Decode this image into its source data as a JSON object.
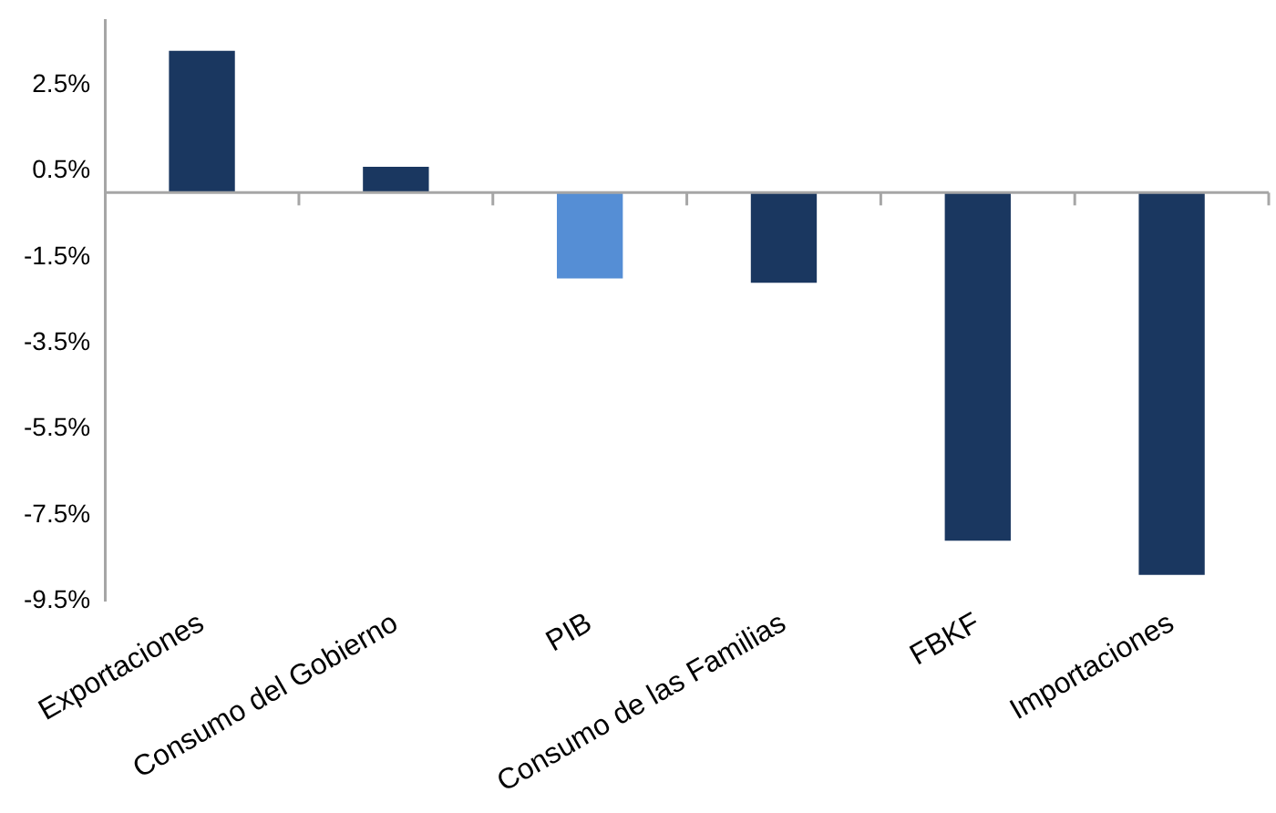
{
  "chart_data": {
    "type": "bar",
    "categories": [
      "Exportaciones",
      "Consumo del Gobierno",
      "PIB",
      "Consumo de las Familias",
      "FBKF",
      "Importaciones"
    ],
    "values": [
      3.3,
      0.6,
      -2.0,
      -2.1,
      -8.1,
      -8.9
    ],
    "colors": [
      "#1a3760",
      "#1a3760",
      "#558ed5",
      "#1a3760",
      "#1a3760",
      "#1a3760"
    ],
    "ylim": [
      -9.5,
      4.0
    ],
    "yticks": [
      {
        "value": -9.5,
        "label": "-9.5%"
      },
      {
        "value": -7.5,
        "label": "-7.5%"
      },
      {
        "value": -5.5,
        "label": "-5.5%"
      },
      {
        "value": -3.5,
        "label": "-3.5%"
      },
      {
        "value": -1.5,
        "label": "-1.5%"
      },
      {
        "value": 0.5,
        "label": "0.5%"
      },
      {
        "value": 2.5,
        "label": "2.5%"
      }
    ],
    "grid": false,
    "legend": false
  }
}
